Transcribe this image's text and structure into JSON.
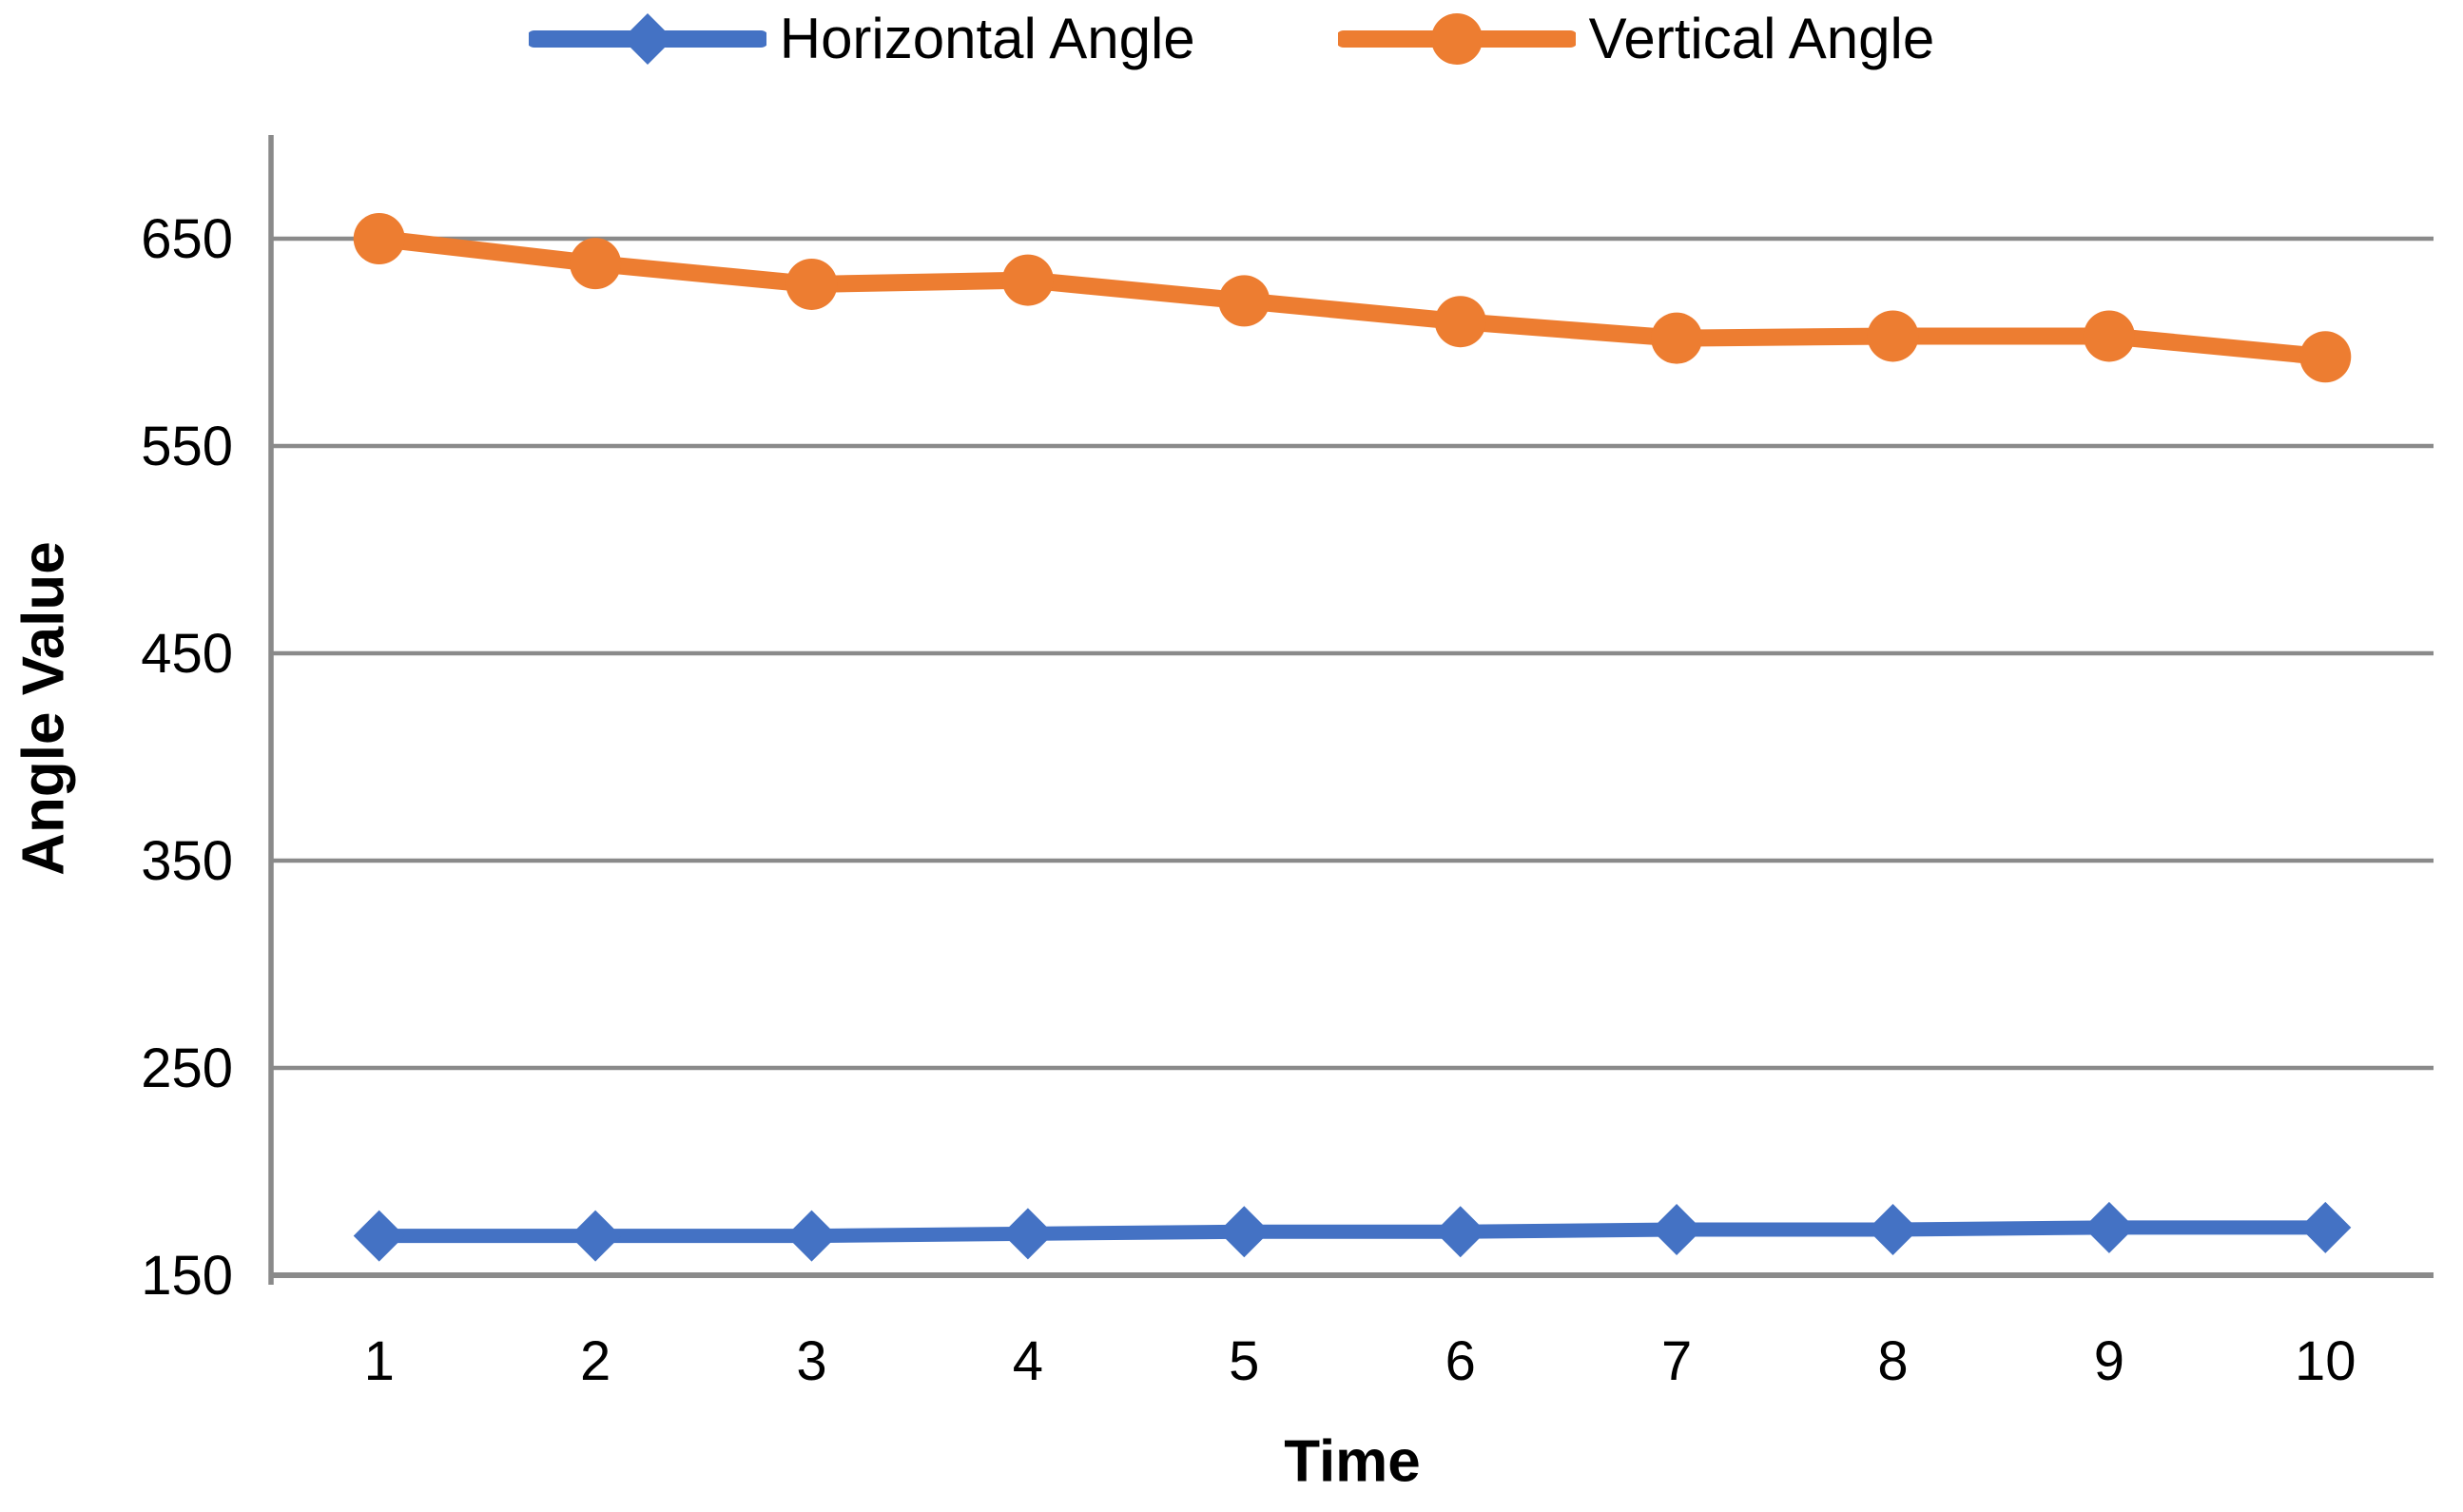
{
  "chart_data": {
    "type": "line",
    "title": "",
    "xlabel": "Time",
    "ylabel": "Angle Value",
    "x": [
      1,
      2,
      3,
      4,
      5,
      6,
      7,
      8,
      9,
      10
    ],
    "series": [
      {
        "name": "Horizontal Angle",
        "color": "#4472C4",
        "marker": "diamond",
        "values": [
          169,
          169,
          169,
          170,
          171,
          171,
          172,
          172,
          173,
          173
        ]
      },
      {
        "name": "Vertical Angle",
        "color": "#ED7D31",
        "marker": "circle",
        "values": [
          650,
          638,
          628,
          630,
          620,
          610,
          602,
          603,
          603,
          593
        ]
      }
    ],
    "ylim": [
      150,
      700
    ],
    "yticks": [
      150,
      250,
      350,
      450,
      550,
      650
    ],
    "grid": "horizontal",
    "legend_position": "top",
    "gridline_color": "#8a8a8a",
    "axis_color": "#8a8a8a",
    "text_color": "#000000"
  }
}
